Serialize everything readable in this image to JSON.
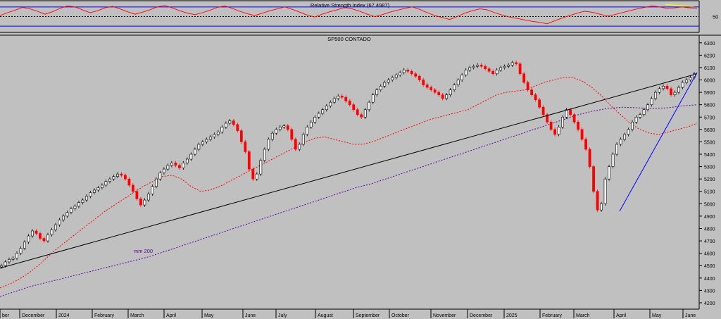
{
  "chart_data": [
    {
      "type": "line",
      "title": "Relative Strength Index (67.4987)",
      "y_tick_labels": [
        "50"
      ],
      "reference_levels": [
        70,
        50,
        30
      ],
      "ylim": [
        20,
        80
      ],
      "series": [
        {
          "color": "#ff0000",
          "values": [
            52,
            58,
            63,
            69,
            66,
            61,
            55,
            60,
            67,
            72,
            70,
            64,
            58,
            62,
            68,
            71,
            66,
            60,
            55,
            59,
            64,
            70,
            73,
            68,
            62,
            57,
            54,
            58,
            63,
            69,
            72,
            67,
            61,
            56,
            52,
            57,
            62,
            66,
            70,
            65,
            59,
            53,
            49,
            55,
            60,
            64,
            69,
            66,
            61,
            55,
            50,
            54,
            59,
            63,
            67,
            70,
            65,
            58,
            52,
            48,
            44,
            50,
            57,
            62,
            66,
            64,
            58,
            53,
            49,
            46,
            43,
            40,
            38,
            35,
            41,
            47,
            52,
            57,
            61,
            59,
            55,
            51,
            54,
            58,
            62,
            66,
            69,
            72,
            70,
            67,
            68,
            70,
            68,
            67
          ]
        },
        {
          "color": "#ffff00",
          "values": [
            75,
            71
          ]
        }
      ]
    },
    {
      "type": "line",
      "title": "SP500 CONTADO",
      "x_tick_labels": [
        "ber",
        "December",
        "2024",
        "February",
        "March",
        "April",
        "May",
        "June",
        "July",
        "August",
        "September",
        "October",
        "November",
        "December",
        "2025",
        "February",
        "March",
        "April",
        "May",
        "June"
      ],
      "y_tick_labels": [
        "4200",
        "4300",
        "4400",
        "4500",
        "4600",
        "4700",
        "4800",
        "4900",
        "5000",
        "5100",
        "5200",
        "5300",
        "5400",
        "5500",
        "5600",
        "5700",
        "5800",
        "5900",
        "6000",
        "6100",
        "6200",
        "6300"
      ],
      "ylim": [
        4160,
        6350
      ],
      "annotations": [
        "mm 200"
      ],
      "series": [
        {
          "color": "#000000",
          "kind": "candles",
          "values": [
            4500,
            4530,
            4550,
            4560,
            4600,
            4640,
            4690,
            4740,
            4780,
            4760,
            4720,
            4700,
            4750,
            4790,
            4830,
            4870,
            4900,
            4930,
            4960,
            4980,
            5010,
            5030,
            5060,
            5090,
            5110,
            5130,
            5150,
            5180,
            5200,
            5220,
            5240,
            5230,
            5200,
            5150,
            5100,
            5040,
            4990,
            5030,
            5080,
            5140,
            5200,
            5250,
            5280,
            5310,
            5330,
            5310,
            5290,
            5330,
            5360,
            5400,
            5440,
            5480,
            5500,
            5520,
            5540,
            5560,
            5580,
            5620,
            5650,
            5670,
            5640,
            5590,
            5500,
            5420,
            5280,
            5200,
            5240,
            5350,
            5440,
            5520,
            5570,
            5600,
            5620,
            5630,
            5600,
            5520,
            5440,
            5480,
            5560,
            5620,
            5660,
            5700,
            5730,
            5760,
            5790,
            5820,
            5850,
            5870,
            5860,
            5830,
            5800,
            5760,
            5720,
            5700,
            5760,
            5820,
            5880,
            5920,
            5950,
            5980,
            6000,
            6020,
            6040,
            6060,
            6080,
            6070,
            6050,
            6030,
            6000,
            5960,
            5940,
            5920,
            5900,
            5880,
            5850,
            5880,
            5920,
            5960,
            6000,
            6040,
            6080,
            6100,
            6110,
            6120,
            6110,
            6090,
            6070,
            6050,
            6080,
            6100,
            6110,
            6120,
            6140,
            6130,
            6050,
            5980,
            5920,
            5880,
            5840,
            5780,
            5720,
            5660,
            5600,
            5560,
            5620,
            5700,
            5760,
            5720,
            5660,
            5600,
            5520,
            5440,
            5300,
            5100,
            4950,
            5000,
            5200,
            5300,
            5400,
            5480,
            5520,
            5560,
            5600,
            5660,
            5700,
            5720,
            5760,
            5800,
            5850,
            5900,
            5930,
            5950,
            5930,
            5880,
            5900,
            5940,
            5980,
            6000,
            6020,
            6050
          ]
        },
        {
          "color": "#ff0000",
          "kind": "dotted-average",
          "values": [
            4320,
            4350,
            4390,
            4440,
            4500,
            4570,
            4640,
            4700,
            4760,
            4820,
            4880,
            4940,
            4990,
            5040,
            5090,
            5140,
            5180,
            5220,
            5230,
            5200,
            5140,
            5100,
            5110,
            5140,
            5180,
            5220,
            5260,
            5300,
            5340,
            5380,
            5420,
            5460,
            5500,
            5530,
            5540,
            5520,
            5500,
            5480,
            5480,
            5500,
            5530,
            5560,
            5590,
            5620,
            5650,
            5680,
            5700,
            5720,
            5740,
            5760,
            5800,
            5840,
            5880,
            5900,
            5910,
            5920,
            5950,
            5980,
            6000,
            6020,
            6020,
            5990,
            5940,
            5870,
            5790,
            5720,
            5650,
            5600,
            5570,
            5560,
            5580,
            5600,
            5620,
            5650
          ]
        },
        {
          "color": "#5a00a0",
          "kind": "dotted-average",
          "values": [
            4250,
            4290,
            4330,
            4360,
            4390,
            4420,
            4450,
            4480,
            4510,
            4540,
            4570,
            4610,
            4650,
            4690,
            4730,
            4770,
            4810,
            4850,
            4890,
            4930,
            4970,
            5010,
            5050,
            5090,
            5130,
            5160,
            5200,
            5240,
            5280,
            5320,
            5360,
            5400,
            5440,
            5480,
            5520,
            5560,
            5600,
            5640,
            5680,
            5720,
            5750,
            5770,
            5780,
            5775,
            5770,
            5775,
            5790,
            5800
          ]
        },
        {
          "color": "#000000",
          "kind": "trendline",
          "values": [
            4480,
            6050
          ]
        },
        {
          "color": "#0000ff",
          "kind": "trendline",
          "values": [
            4940,
            6060
          ]
        }
      ]
    }
  ]
}
